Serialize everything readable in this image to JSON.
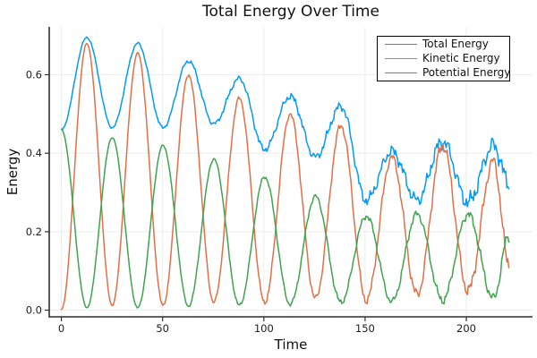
{
  "chart_data": {
    "type": "line",
    "title": "Total Energy Over Time",
    "xlabel": "Time",
    "ylabel": "Energy",
    "xlim": [
      -6,
      232.7
    ],
    "ylim": [
      -0.017,
      0.722
    ],
    "x_ticks": [
      0,
      50,
      100,
      150,
      200
    ],
    "x_tick_labels": [
      "0",
      "50",
      "100",
      "150",
      "200"
    ],
    "y_ticks": [
      0.0,
      0.2,
      0.4,
      0.6
    ],
    "y_tick_labels": [
      "0.0",
      "0.2",
      "0.4",
      "0.6"
    ],
    "grid": true,
    "legend_position": "top-right",
    "background_color": "#ffffff",
    "grid_color": "#ececec",
    "axis_color": "#2f2f2f",
    "tick_label_color": "#1c1c1c",
    "sample_step": 0.5,
    "noise": {
      "base": 0.002,
      "growth": 0.022,
      "exponent": 1.6,
      "t_max": 221
    },
    "series": [
      {
        "name": "Total Energy",
        "color": "#009AFA",
        "noise_scale": 1.3,
        "keypoints": [
          [
            0,
            0.46
          ],
          [
            12.6,
            0.695
          ],
          [
            25.1,
            0.465
          ],
          [
            37.7,
            0.68
          ],
          [
            50.2,
            0.465
          ],
          [
            62.8,
            0.635
          ],
          [
            75.3,
            0.475
          ],
          [
            87.9,
            0.59
          ],
          [
            100.4,
            0.41
          ],
          [
            113,
            0.545
          ],
          [
            125.5,
            0.39
          ],
          [
            138.1,
            0.52
          ],
          [
            150.6,
            0.28
          ],
          [
            163.2,
            0.405
          ],
          [
            175.7,
            0.28
          ],
          [
            188.3,
            0.43
          ],
          [
            200.8,
            0.275
          ],
          [
            213.4,
            0.42
          ],
          [
            221,
            0.325
          ]
        ]
      },
      {
        "name": "Kinetic Energy",
        "color": "#E36F47",
        "noise_scale": 1.0,
        "clamp_min": 0.002,
        "keypoints": [
          [
            0,
            0.001
          ],
          [
            12.6,
            0.68
          ],
          [
            25.1,
            0.012
          ],
          [
            37.7,
            0.655
          ],
          [
            50.2,
            0.012
          ],
          [
            62.8,
            0.6
          ],
          [
            75.3,
            0.02
          ],
          [
            87.9,
            0.54
          ],
          [
            100.4,
            0.02
          ],
          [
            113,
            0.5
          ],
          [
            125.5,
            0.03
          ],
          [
            138.1,
            0.47
          ],
          [
            150.6,
            0.025
          ],
          [
            163.2,
            0.39
          ],
          [
            175.7,
            0.04
          ],
          [
            188.3,
            0.42
          ],
          [
            200.8,
            0.05
          ],
          [
            213.4,
            0.38
          ],
          [
            221,
            0.12
          ]
        ]
      },
      {
        "name": "Potential Energy",
        "color": "#3EA44E",
        "noise_scale": 0.75,
        "clamp_min": 0.002,
        "keypoints": [
          [
            0,
            0.46
          ],
          [
            12.6,
            0.006
          ],
          [
            25.1,
            0.44
          ],
          [
            37.7,
            0.006
          ],
          [
            50.2,
            0.42
          ],
          [
            62.8,
            0.01
          ],
          [
            75.3,
            0.385
          ],
          [
            87.9,
            0.012
          ],
          [
            100.4,
            0.34
          ],
          [
            113,
            0.015
          ],
          [
            125.5,
            0.29
          ],
          [
            138.1,
            0.02
          ],
          [
            150.6,
            0.24
          ],
          [
            163.2,
            0.022
          ],
          [
            175.7,
            0.245
          ],
          [
            188.3,
            0.025
          ],
          [
            200.8,
            0.245
          ],
          [
            213.4,
            0.03
          ],
          [
            221,
            0.19
          ]
        ]
      }
    ]
  }
}
